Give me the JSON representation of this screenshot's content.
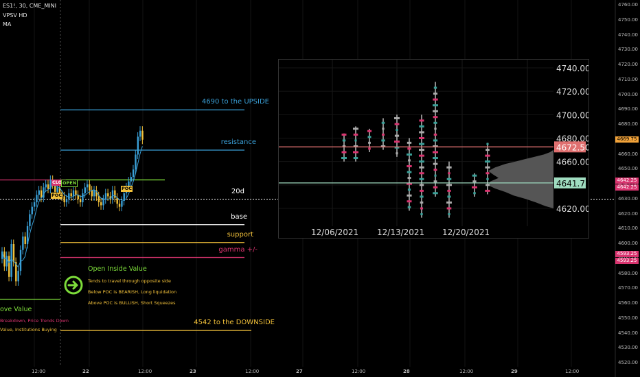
{
  "header": {
    "symbol": "ES1!, 30, CME_MINI",
    "indicator1": "VPSV HD",
    "indicator2": "MA"
  },
  "price_axis": {
    "labels": [
      "4760.00",
      "4750.00",
      "4740.00",
      "4730.00",
      "4720.00",
      "4710.00",
      "4700.00",
      "4690.00",
      "4680.00",
      "4670.00",
      "4660.00",
      "4650.00",
      "4640.00",
      "4630.00",
      "4620.00",
      "4610.00",
      "4600.00",
      "4590.00",
      "4580.00",
      "4570.00",
      "4560.00",
      "4550.00",
      "4540.00",
      "4530.00",
      "4520.00"
    ]
  },
  "time_axis": {
    "labels": [
      "12:00",
      "22",
      "12:00",
      "23",
      "12:00",
      "27",
      "12:00",
      "28",
      "12:00",
      "29",
      "12:00"
    ]
  },
  "price_tags": [
    {
      "text": "4669.75",
      "color": "#f2a33a"
    },
    {
      "text": "4642.25",
      "color": "#d9346f"
    },
    {
      "text": "4642.25",
      "color": "#d9346f"
    },
    {
      "text": "4593.25",
      "color": "#d9346f"
    },
    {
      "text": "4593.25",
      "color": "#d9346f"
    }
  ],
  "levels": [
    {
      "label": "4690 to the UPSIDE",
      "price": 4690,
      "color": "#3aa0d8"
    },
    {
      "label": "resistance",
      "price": 4663,
      "color": "#3aa0d8"
    },
    {
      "label": "20d",
      "price": 4630,
      "color": "#ffffff"
    },
    {
      "label": "base",
      "price": 4613,
      "color": "#ffffff"
    },
    {
      "label": "support",
      "price": 4601,
      "color": "#f2c13a"
    },
    {
      "label": "gamma +/-",
      "price": 4591,
      "color": "#d9346f"
    },
    {
      "label": "4542 to the DOWNSIDE",
      "price": 4542,
      "color": "#f2c13a"
    }
  ],
  "chips": {
    "close": "CLO",
    "open": "OPEN",
    "poc1": "POC",
    "poc2": "POC"
  },
  "annotation": {
    "title": "Open Inside Value",
    "line1": "Tends to travel through opposite side",
    "line2": "Below POC is BEARISH, Long liquidation",
    "line3": "Above POC is BULLISH, Short Squeezes",
    "left_title": "ove Value",
    "left_line1": "Breakdown, Price Trends Down",
    "left_line2": "Value, Institutions Buying",
    "arrow_icon": "arrow-right-circle-icon"
  },
  "inset": {
    "price_labels": [
      "4740.00",
      "4720.00",
      "4700.00",
      "4680.00",
      "4660.00",
      "4620.00"
    ],
    "highlight_red": "4672.50",
    "highlight_teal": "4641.75",
    "date_labels": [
      "12/06/2021",
      "12/13/2021",
      "12/20/2021"
    ]
  },
  "chart_data": {
    "type": "candlestick",
    "title": "",
    "symbol": "ES1!",
    "interval": "30",
    "y_axis_range": [
      4515,
      4765
    ],
    "key_levels": [
      4690,
      4663,
      4630,
      4613,
      4601,
      4591,
      4542
    ],
    "last_price": 4669.75,
    "inset_volume_profile": {
      "y_range": [
        4612,
        4745
      ],
      "high_volume_nodes": [
        4672.5,
        4641.75
      ]
    }
  }
}
